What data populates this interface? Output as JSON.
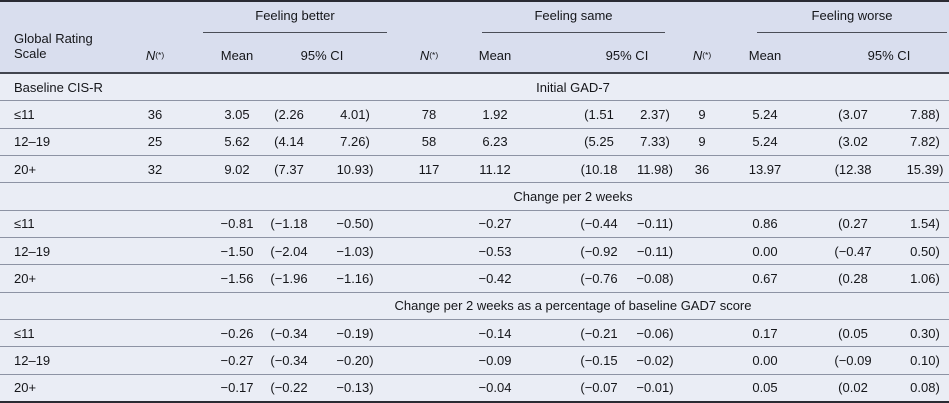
{
  "header": {
    "row_label_line1": "Global Rating",
    "row_label_line2": "Scale",
    "n_label": "N",
    "n_sup": "(*)",
    "mean_label": "Mean",
    "ci_label": "95% CI",
    "groups": [
      {
        "label": "Feeling better"
      },
      {
        "label": "Feeling same"
      },
      {
        "label": "Feeling worse"
      }
    ]
  },
  "sections": [
    {
      "caption": "Initial GAD-7",
      "row_label": "Baseline CIS-R",
      "rows": [
        {
          "label": "≤11",
          "cells": [
            "36",
            "3.05",
            "(2.26",
            "4.01)",
            "78",
            "1.92",
            "(1.51",
            "2.37)",
            "9",
            "5.24",
            "(3.07",
            "7.88)"
          ]
        },
        {
          "label": "12–19",
          "cells": [
            "25",
            "5.62",
            "(4.14",
            "7.26)",
            "58",
            "6.23",
            "(5.25",
            "7.33)",
            "9",
            "5.24",
            "(3.02",
            "7.82)"
          ]
        },
        {
          "label": "20+",
          "cells": [
            "32",
            "9.02",
            "(7.37",
            "10.93)",
            "117",
            "11.12",
            "(10.18",
            "11.98)",
            "36",
            "13.97",
            "(12.38",
            "15.39)"
          ]
        }
      ]
    },
    {
      "caption": "Change per 2 weeks",
      "row_label": "",
      "rows": [
        {
          "label": "≤11",
          "cells": [
            "",
            "−0.81",
            "(−1.18",
            "−0.50)",
            "",
            "−0.27",
            "(−0.44",
            "−0.11)",
            "",
            "0.86",
            "(0.27",
            "1.54)"
          ]
        },
        {
          "label": "12–19",
          "cells": [
            "",
            "−1.50",
            "(−2.04",
            "−1.03)",
            "",
            "−0.53",
            "(−0.92",
            "−0.11)",
            "",
            "0.00",
            "(−0.47",
            "0.50)"
          ]
        },
        {
          "label": "20+",
          "cells": [
            "",
            "−1.56",
            "(−1.96",
            "−1.16)",
            "",
            "−0.42",
            "(−0.76",
            "−0.08)",
            "",
            "0.67",
            "(0.28",
            "1.06)"
          ]
        }
      ]
    },
    {
      "caption": "Change per 2 weeks as a percentage of baseline GAD7 score",
      "row_label": "",
      "rows": [
        {
          "label": "≤11",
          "cells": [
            "",
            "−0.26",
            "(−0.34",
            "−0.19)",
            "",
            "−0.14",
            "(−0.21",
            "−0.06)",
            "",
            "0.17",
            "(0.05",
            "0.30)"
          ]
        },
        {
          "label": "12–19",
          "cells": [
            "",
            "−0.27",
            "(−0.34",
            "−0.20)",
            "",
            "−0.09",
            "(−0.15",
            "−0.02)",
            "",
            "0.00",
            "(−0.09",
            "0.10)"
          ]
        },
        {
          "label": "20+",
          "cells": [
            "",
            "−0.17",
            "(−0.22",
            "−0.13)",
            "",
            "−0.04",
            "(−0.07",
            "−0.01)",
            "",
            "0.05",
            "(0.02",
            "0.08)"
          ]
        }
      ]
    }
  ],
  "colors": {
    "header_bg": "#d9deee",
    "body_bg": "#eaedf5",
    "border_dark": "#2a2b33",
    "row_rule": "#8d93a4",
    "text": "#15161a"
  }
}
